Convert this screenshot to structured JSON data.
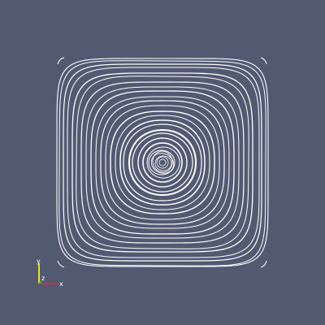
{
  "view": {
    "background_color": "#525a72",
    "streamline_color": "#ffffff"
  },
  "orientation_axes": {
    "x_label": "x",
    "y_label": "y",
    "z_label": "z",
    "x_color": "#e0282a",
    "y_color": "#f2e21a",
    "z_color": "#2fbf3a"
  }
}
